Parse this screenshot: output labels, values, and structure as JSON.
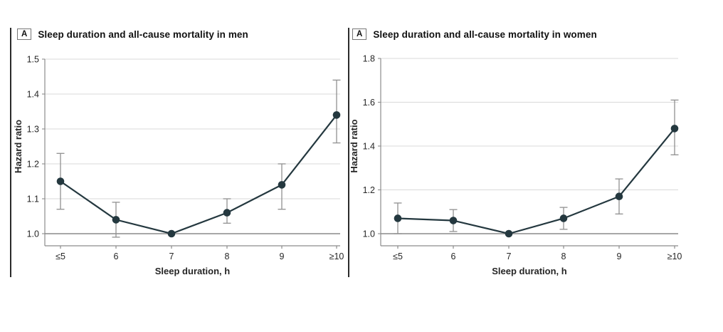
{
  "style": {
    "background": "#ffffff",
    "series_color": "#24383f",
    "error_bar_color": "#909090",
    "grid_color": "#d9d9d9",
    "axis_color": "#8c8c8c",
    "reference_line_color": "#8a8a8a",
    "text_color": "#262626",
    "title_color": "#111111",
    "rule_color": "#2b2b2b"
  },
  "chart_data": [
    {
      "type": "line",
      "panel_label": "A",
      "title": "Sleep duration and all-cause mortality in men",
      "xlabel": "Sleep duration, h",
      "ylabel": "Hazard ratio",
      "categories": [
        "≤5",
        "6",
        "7",
        "8",
        "9",
        "≥10"
      ],
      "ylim": [
        1.0,
        1.5
      ],
      "yticks": [
        1.0,
        1.1,
        1.2,
        1.3,
        1.4,
        1.5
      ],
      "reference_line": 1.0,
      "grid": true,
      "legend": false,
      "error_bars": true,
      "series": [
        {
          "name": "Hazard ratio, men",
          "values": [
            1.15,
            1.04,
            1.0,
            1.06,
            1.14,
            1.34
          ],
          "ci_low": [
            1.07,
            0.99,
            null,
            1.03,
            1.07,
            1.26
          ],
          "ci_high": [
            1.23,
            1.09,
            null,
            1.1,
            1.2,
            1.44
          ]
        }
      ]
    },
    {
      "type": "line",
      "panel_label": "A",
      "title": "Sleep duration and all-cause mortality in women",
      "xlabel": "Sleep duration, h",
      "ylabel": "Hazard ratio",
      "categories": [
        "≤5",
        "6",
        "7",
        "8",
        "9",
        "≥10"
      ],
      "ylim": [
        1.0,
        1.8
      ],
      "yticks": [
        1.0,
        1.2,
        1.4,
        1.6,
        1.8
      ],
      "reference_line": 1.0,
      "grid": true,
      "legend": false,
      "error_bars": true,
      "series": [
        {
          "name": "Hazard ratio, women",
          "values": [
            1.07,
            1.06,
            1.0,
            1.07,
            1.17,
            1.48
          ],
          "ci_low": [
            1.0,
            1.01,
            null,
            1.02,
            1.09,
            1.36
          ],
          "ci_high": [
            1.14,
            1.11,
            null,
            1.12,
            1.25,
            1.61
          ]
        }
      ]
    }
  ]
}
